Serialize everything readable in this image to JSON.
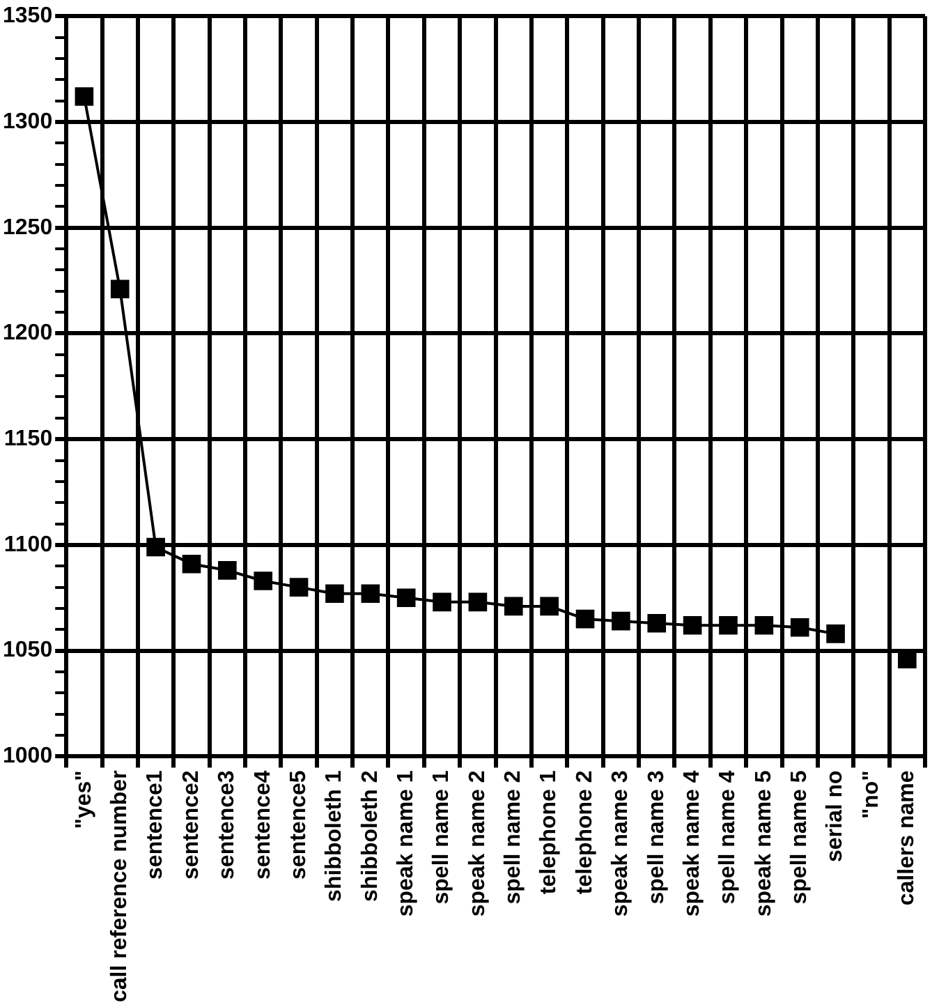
{
  "chart_data": {
    "type": "line",
    "categories": [
      "\"yes\"",
      "call reference number",
      "sentence1",
      "sentence2",
      "sentence3",
      "sentence4",
      "sentence5",
      "shibboleth 1",
      "shibboleth 2",
      "speak name 1",
      "spell name 1",
      "speak name 2",
      "spell name 2",
      "telephone 1",
      "telephone 2",
      "speak name 3",
      "spell name 3",
      "speak name 4",
      "spell name 4",
      "speak name 5",
      "spell name 5",
      "serial no",
      "\"no\"",
      "callers name"
    ],
    "series": [
      {
        "color": "#000000",
        "values": [
          1312,
          1221,
          1099,
          1091,
          1088,
          1083,
          1080,
          1077,
          1077,
          1075,
          1073,
          1073,
          1071,
          1071,
          1065,
          1064,
          1063,
          1062,
          1062,
          1062,
          1061,
          1058,
          null,
          1046
        ]
      }
    ],
    "ylim": [
      1000,
      1350
    ],
    "yticks": [
      1000,
      {
        "value": 1010,
        "label": null
      },
      {
        "value": 1020,
        "label": null
      },
      {
        "value": 1030,
        "label": null
      },
      {
        "value": 1040,
        "label": null
      },
      1050,
      {
        "value": 1060,
        "label": null
      },
      {
        "value": 1070,
        "label": null
      },
      {
        "value": 1080,
        "label": null
      },
      {
        "value": 1090,
        "label": null
      },
      1100,
      {
        "value": 1110,
        "label": null
      },
      {
        "value": 1120,
        "label": null
      },
      {
        "value": 1130,
        "label": null
      },
      {
        "value": 1140,
        "label": null
      },
      1150,
      {
        "value": 1160,
        "label": null
      },
      {
        "value": 1170,
        "label": null
      },
      {
        "value": 1180,
        "label": null
      },
      {
        "value": 1190,
        "label": null
      },
      1200,
      {
        "value": 1210,
        "label": null
      },
      {
        "value": 1220,
        "label": null
      },
      {
        "value": 1230,
        "label": null
      },
      {
        "value": 1240,
        "label": null
      },
      1250,
      {
        "value": 1260,
        "label": null
      },
      {
        "value": 1270,
        "label": null
      },
      {
        "value": 1280,
        "label": null
      },
      {
        "value": 1290,
        "label": null
      },
      1300,
      {
        "value": 1310,
        "label": null
      },
      {
        "value": 1320,
        "label": null
      },
      {
        "value": 1330,
        "label": null
      },
      {
        "value": 1340,
        "label": null
      },
      1350
    ],
    "grid": true,
    "marker": "square",
    "line_style": "solid"
  }
}
